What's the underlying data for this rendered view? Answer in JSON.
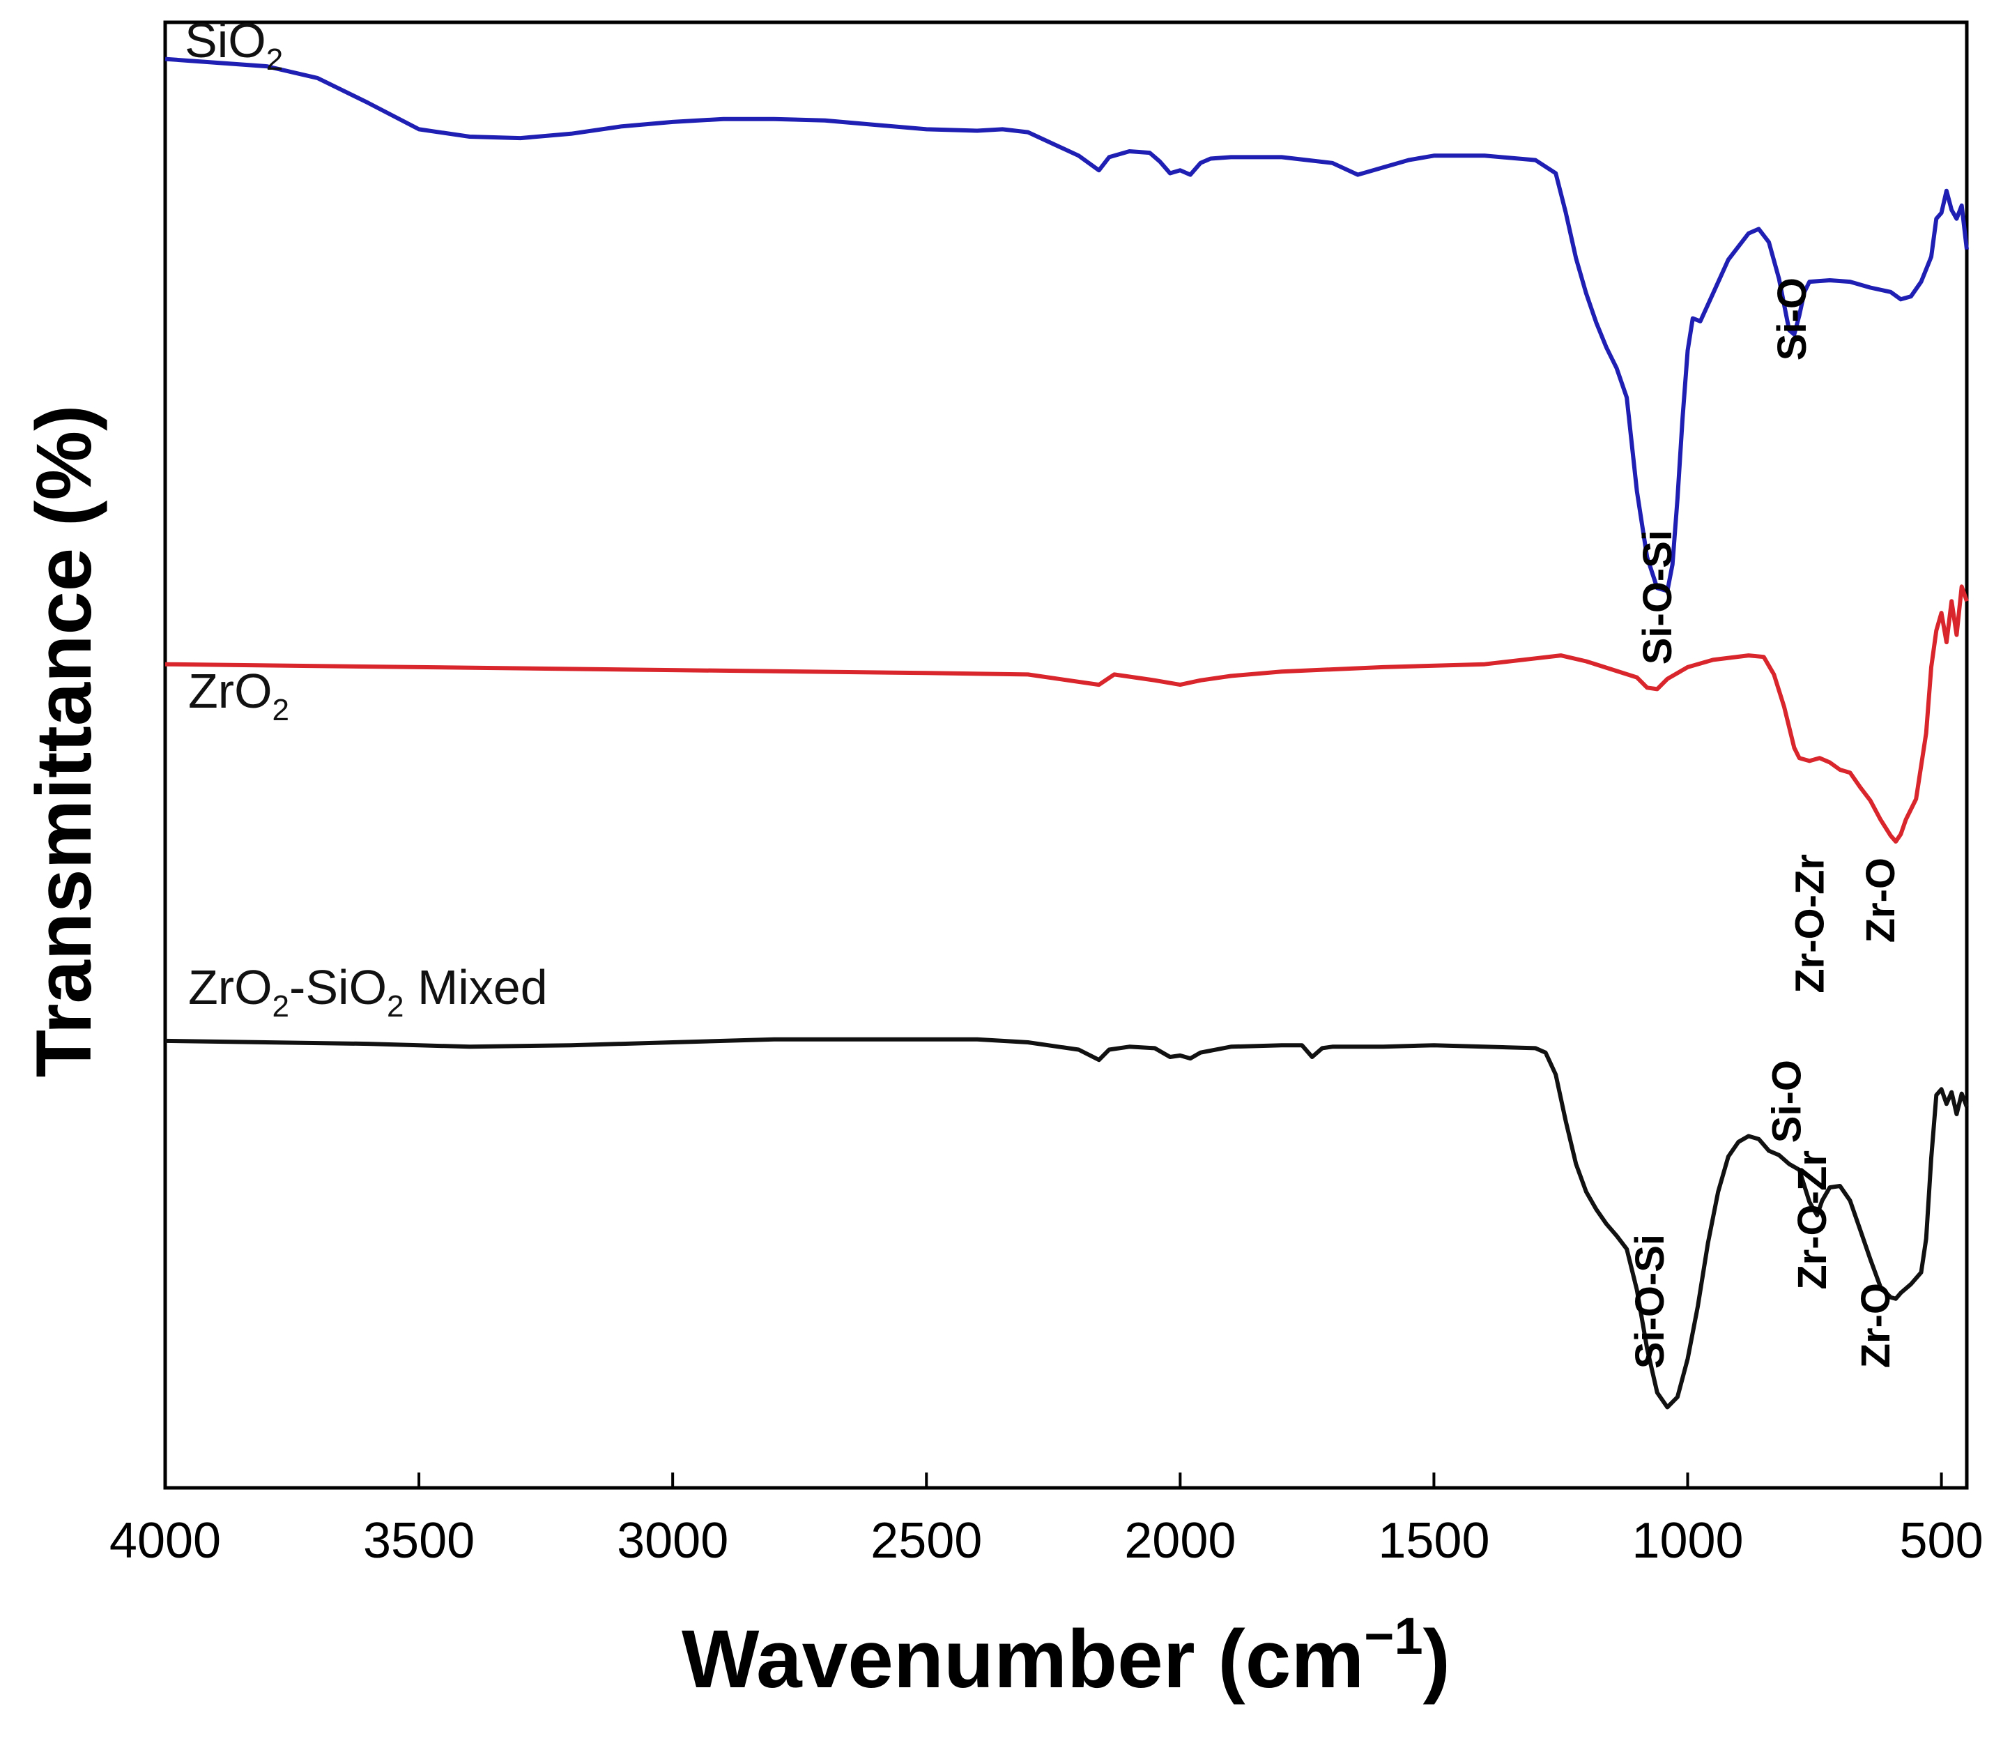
{
  "chart_data": {
    "type": "line",
    "title": "",
    "xlabel": "Wavenumber (cm",
    "xlabel_sup": "−1",
    "xlabel_close": ")",
    "ylabel": "Transmittance (%)",
    "xlim": [
      4000,
      450
    ],
    "ylim": [
      0,
      100
    ],
    "y_ticks_shown": false,
    "grid": false,
    "x_ticks": [
      4000,
      3500,
      3000,
      2500,
      2000,
      1500,
      1000,
      500
    ],
    "x_tick_labels": [
      "4000",
      "3500",
      "3000",
      "2500",
      "2000",
      "1500",
      "1000",
      "500"
    ],
    "series": [
      {
        "name": "SiO2",
        "label_main": "SiO",
        "label_sub": "2",
        "label_rest": "",
        "color": "#1f1fb4",
        "points": [
          [
            4000,
            97.5
          ],
          [
            3800,
            97
          ],
          [
            3700,
            96.2
          ],
          [
            3600,
            94.5
          ],
          [
            3500,
            92.7
          ],
          [
            3400,
            92.2
          ],
          [
            3300,
            92.1
          ],
          [
            3200,
            92.4
          ],
          [
            3100,
            92.9
          ],
          [
            3000,
            93.2
          ],
          [
            2900,
            93.4
          ],
          [
            2800,
            93.4
          ],
          [
            2700,
            93.3
          ],
          [
            2600,
            93
          ],
          [
            2500,
            92.7
          ],
          [
            2400,
            92.6
          ],
          [
            2350,
            92.7
          ],
          [
            2300,
            92.5
          ],
          [
            2250,
            91.7
          ],
          [
            2200,
            90.9
          ],
          [
            2160,
            89.9
          ],
          [
            2140,
            90.8
          ],
          [
            2100,
            91.2
          ],
          [
            2060,
            91.1
          ],
          [
            2040,
            90.5
          ],
          [
            2020,
            89.7
          ],
          [
            2000,
            89.9
          ],
          [
            1980,
            89.6
          ],
          [
            1960,
            90.4
          ],
          [
            1940,
            90.7
          ],
          [
            1900,
            90.8
          ],
          [
            1800,
            90.8
          ],
          [
            1700,
            90.4
          ],
          [
            1650,
            89.6
          ],
          [
            1600,
            90.1
          ],
          [
            1550,
            90.6
          ],
          [
            1500,
            90.9
          ],
          [
            1400,
            90.9
          ],
          [
            1300,
            90.6
          ],
          [
            1260,
            89.7
          ],
          [
            1240,
            87
          ],
          [
            1220,
            83.9
          ],
          [
            1200,
            81.5
          ],
          [
            1180,
            79.5
          ],
          [
            1160,
            77.8
          ],
          [
            1140,
            76.4
          ],
          [
            1120,
            74.4
          ],
          [
            1100,
            68
          ],
          [
            1080,
            63.5
          ],
          [
            1060,
            61.4
          ],
          [
            1040,
            61.2
          ],
          [
            1030,
            63
          ],
          [
            1020,
            67.5
          ],
          [
            1010,
            73
          ],
          [
            1000,
            77.6
          ],
          [
            990,
            79.8
          ],
          [
            975,
            79.6
          ],
          [
            950,
            81.5
          ],
          [
            920,
            83.8
          ],
          [
            880,
            85.6
          ],
          [
            860,
            85.9
          ],
          [
            840,
            85
          ],
          [
            820,
            82.5
          ],
          [
            800,
            79
          ],
          [
            790,
            78.7
          ],
          [
            780,
            80
          ],
          [
            770,
            81.6
          ],
          [
            760,
            82.3
          ],
          [
            720,
            82.4
          ],
          [
            680,
            82.3
          ],
          [
            640,
            81.9
          ],
          [
            600,
            81.6
          ],
          [
            580,
            81.1
          ],
          [
            560,
            81.3
          ],
          [
            540,
            82.3
          ],
          [
            520,
            84
          ],
          [
            510,
            86.6
          ],
          [
            500,
            87
          ],
          [
            490,
            88.5
          ],
          [
            480,
            87.2
          ],
          [
            470,
            86.6
          ],
          [
            460,
            87.5
          ],
          [
            450,
            84.5
          ]
        ]
      },
      {
        "name": "ZrO2",
        "label_main": "ZrO",
        "label_sub": "2",
        "label_rest": "",
        "color": "#d8262c",
        "points": [
          [
            4000,
            56.2
          ],
          [
            3500,
            56
          ],
          [
            3000,
            55.8
          ],
          [
            2500,
            55.6
          ],
          [
            2300,
            55.5
          ],
          [
            2160,
            54.8
          ],
          [
            2130,
            55.5
          ],
          [
            2050,
            55.1
          ],
          [
            2000,
            54.8
          ],
          [
            1960,
            55.1
          ],
          [
            1900,
            55.4
          ],
          [
            1800,
            55.7
          ],
          [
            1600,
            56
          ],
          [
            1400,
            56.2
          ],
          [
            1300,
            56.6
          ],
          [
            1250,
            56.8
          ],
          [
            1200,
            56.4
          ],
          [
            1100,
            55.3
          ],
          [
            1080,
            54.6
          ],
          [
            1060,
            54.5
          ],
          [
            1040,
            55.2
          ],
          [
            1000,
            56
          ],
          [
            950,
            56.5
          ],
          [
            880,
            56.8
          ],
          [
            850,
            56.7
          ],
          [
            830,
            55.5
          ],
          [
            810,
            53.3
          ],
          [
            790,
            50.5
          ],
          [
            780,
            49.8
          ],
          [
            760,
            49.6
          ],
          [
            740,
            49.8
          ],
          [
            720,
            49.5
          ],
          [
            700,
            49
          ],
          [
            680,
            48.8
          ],
          [
            660,
            47.8
          ],
          [
            640,
            46.9
          ],
          [
            620,
            45.6
          ],
          [
            600,
            44.5
          ],
          [
            590,
            44.1
          ],
          [
            580,
            44.6
          ],
          [
            570,
            45.6
          ],
          [
            550,
            47
          ],
          [
            530,
            51.5
          ],
          [
            520,
            56
          ],
          [
            510,
            58.5
          ],
          [
            500,
            59.7
          ],
          [
            490,
            57.7
          ],
          [
            480,
            60.5
          ],
          [
            470,
            58.2
          ],
          [
            460,
            61.5
          ],
          [
            450,
            60.5
          ]
        ]
      },
      {
        "name": "ZrO2-SiO2 Mixed",
        "label_main": "ZrO",
        "label_sub": "2",
        "label_rest": "-SiO₂ Mixed",
        "color": "#111111",
        "points": [
          [
            4000,
            30.5
          ],
          [
            3600,
            30.3
          ],
          [
            3400,
            30.1
          ],
          [
            3200,
            30.2
          ],
          [
            3000,
            30.4
          ],
          [
            2800,
            30.6
          ],
          [
            2600,
            30.6
          ],
          [
            2400,
            30.6
          ],
          [
            2300,
            30.4
          ],
          [
            2200,
            29.9
          ],
          [
            2160,
            29.2
          ],
          [
            2140,
            29.9
          ],
          [
            2100,
            30.1
          ],
          [
            2050,
            30
          ],
          [
            2020,
            29.4
          ],
          [
            2000,
            29.5
          ],
          [
            1980,
            29.3
          ],
          [
            1960,
            29.7
          ],
          [
            1900,
            30.1
          ],
          [
            1800,
            30.2
          ],
          [
            1760,
            30.2
          ],
          [
            1740,
            29.4
          ],
          [
            1720,
            30
          ],
          [
            1700,
            30.1
          ],
          [
            1600,
            30.1
          ],
          [
            1500,
            30.2
          ],
          [
            1400,
            30.1
          ],
          [
            1300,
            30
          ],
          [
            1280,
            29.7
          ],
          [
            1260,
            28.2
          ],
          [
            1240,
            25
          ],
          [
            1220,
            22.1
          ],
          [
            1200,
            20.2
          ],
          [
            1180,
            19
          ],
          [
            1160,
            18
          ],
          [
            1140,
            17.2
          ],
          [
            1120,
            16.3
          ],
          [
            1100,
            13.5
          ],
          [
            1080,
            9.5
          ],
          [
            1060,
            6.5
          ],
          [
            1040,
            5.5
          ],
          [
            1020,
            6.2
          ],
          [
            1000,
            8.8
          ],
          [
            980,
            12.4
          ],
          [
            960,
            16.7
          ],
          [
            940,
            20.2
          ],
          [
            920,
            22.6
          ],
          [
            900,
            23.6
          ],
          [
            880,
            24
          ],
          [
            860,
            23.8
          ],
          [
            840,
            23
          ],
          [
            820,
            22.7
          ],
          [
            800,
            22.1
          ],
          [
            780,
            21.7
          ],
          [
            760,
            19.5
          ],
          [
            745,
            18.6
          ],
          [
            735,
            19.6
          ],
          [
            720,
            20.5
          ],
          [
            700,
            20.6
          ],
          [
            680,
            19.6
          ],
          [
            660,
            17.6
          ],
          [
            640,
            15.6
          ],
          [
            620,
            13.7
          ],
          [
            600,
            13
          ],
          [
            590,
            12.9
          ],
          [
            580,
            13.3
          ],
          [
            560,
            13.9
          ],
          [
            540,
            14.7
          ],
          [
            530,
            17
          ],
          [
            520,
            22.5
          ],
          [
            510,
            26.8
          ],
          [
            500,
            27.2
          ],
          [
            490,
            26.2
          ],
          [
            480,
            27
          ],
          [
            470,
            25.5
          ],
          [
            460,
            26.9
          ],
          [
            450,
            26
          ]
        ]
      }
    ],
    "annotations": [
      {
        "text": "Si-O-Si",
        "series": "SiO2",
        "x": 1060
      },
      {
        "text": "Si-O",
        "series": "SiO2",
        "x": 795
      },
      {
        "text": "Zr-O-Zr",
        "series": "ZrO2",
        "x": 760
      },
      {
        "text": "Zr-O",
        "series": "ZrO2",
        "x": 620
      },
      {
        "text": "Si-O-Si",
        "series": "ZrO2-SiO2 Mixed",
        "x": 1075
      },
      {
        "text": "Si-O",
        "series": "ZrO2-SiO2 Mixed",
        "x": 805
      },
      {
        "text": "Zr-O-Zr",
        "series": "ZrO2-SiO2 Mixed",
        "x": 755
      },
      {
        "text": "Zr-O",
        "series": "ZrO2-SiO2 Mixed",
        "x": 630
      }
    ]
  }
}
